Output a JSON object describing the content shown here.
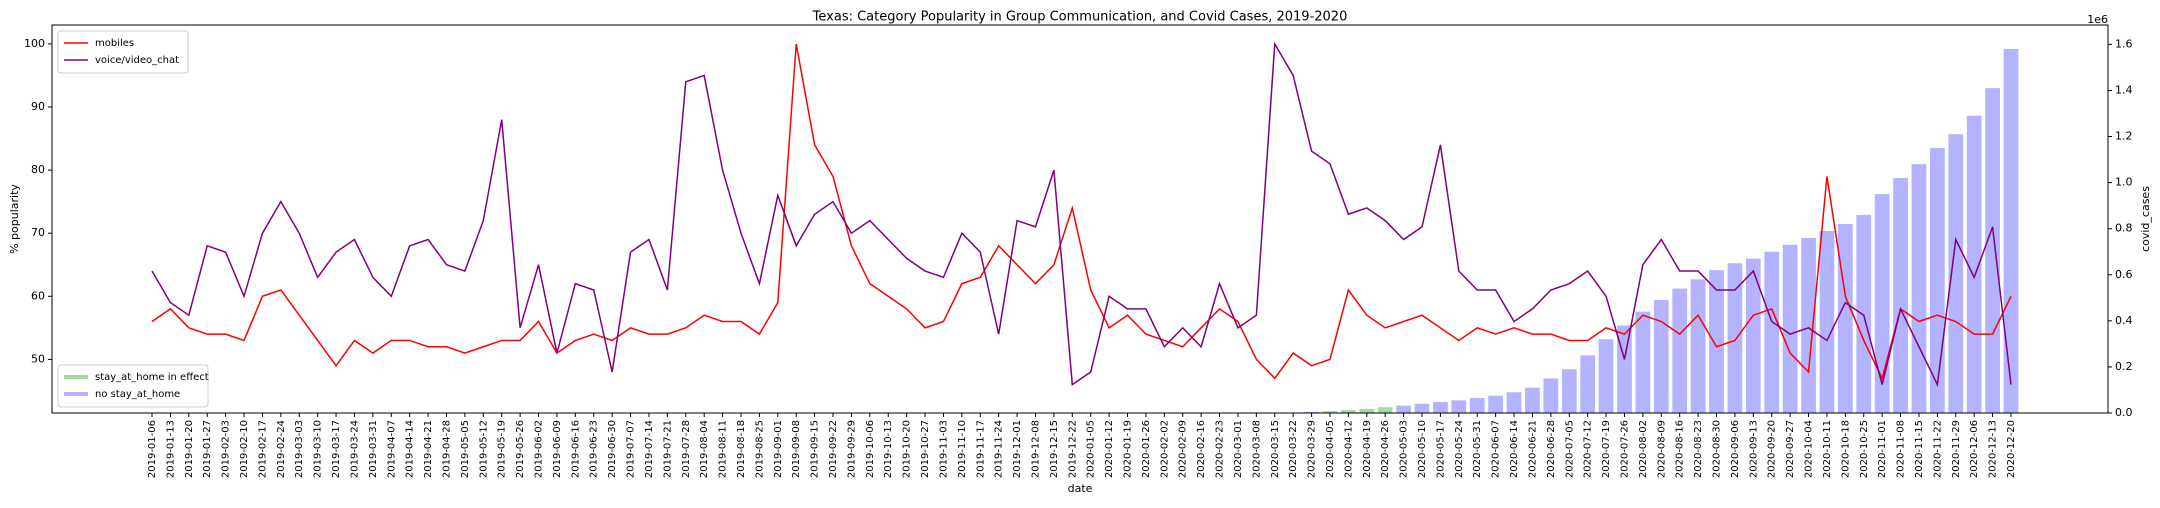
{
  "chart_data": {
    "type": "line",
    "title": "Texas: Category Popularity in Group Communication, and Covid Cases, 2019-2020",
    "x_label": "date",
    "y_label": "% popularity",
    "y2_label": "covid_cases",
    "y2_offset_label": "1e6",
    "legend": "upper left",
    "bar_legend": "lower left",
    "grid": false,
    "categories": [
      "2019-01-06",
      "2019-01-13",
      "2019-01-20",
      "2019-01-27",
      "2019-02-03",
      "2019-02-10",
      "2019-02-17",
      "2019-02-24",
      "2019-03-03",
      "2019-03-10",
      "2019-03-17",
      "2019-03-24",
      "2019-03-31",
      "2019-04-07",
      "2019-04-14",
      "2019-04-21",
      "2019-04-28",
      "2019-05-05",
      "2019-05-12",
      "2019-05-19",
      "2019-05-26",
      "2019-06-02",
      "2019-06-09",
      "2019-06-16",
      "2019-06-23",
      "2019-06-30",
      "2019-07-07",
      "2019-07-14",
      "2019-07-21",
      "2019-07-28",
      "2019-08-04",
      "2019-08-11",
      "2019-08-18",
      "2019-08-25",
      "2019-09-01",
      "2019-09-08",
      "2019-09-15",
      "2019-09-22",
      "2019-09-29",
      "2019-10-06",
      "2019-10-13",
      "2019-10-20",
      "2019-10-27",
      "2019-11-03",
      "2019-11-10",
      "2019-11-17",
      "2019-11-24",
      "2019-12-01",
      "2019-12-08",
      "2019-12-15",
      "2019-12-22",
      "2020-01-05",
      "2020-01-12",
      "2020-01-19",
      "2020-01-26",
      "2020-02-02",
      "2020-02-09",
      "2020-02-16",
      "2020-02-23",
      "2020-03-01",
      "2020-03-08",
      "2020-03-15",
      "2020-03-22",
      "2020-03-29",
      "2020-04-05",
      "2020-04-12",
      "2020-04-19",
      "2020-04-26",
      "2020-05-03",
      "2020-05-10",
      "2020-05-17",
      "2020-05-24",
      "2020-05-31",
      "2020-06-07",
      "2020-06-14",
      "2020-06-21",
      "2020-06-28",
      "2020-07-05",
      "2020-07-12",
      "2020-07-19",
      "2020-07-26",
      "2020-08-02",
      "2020-08-09",
      "2020-08-16",
      "2020-08-23",
      "2020-08-30",
      "2020-09-06",
      "2020-09-13",
      "2020-09-20",
      "2020-09-27",
      "2020-10-04",
      "2020-10-11",
      "2020-10-18",
      "2020-10-25",
      "2020-11-01",
      "2020-11-08",
      "2020-11-15",
      "2020-11-22",
      "2020-11-29",
      "2020-12-06",
      "2020-12-13",
      "2020-12-20"
    ],
    "series": [
      {
        "name": "mobiles",
        "color": "#ff0000",
        "values": [
          56,
          58,
          55,
          54,
          54,
          53,
          60,
          61,
          57,
          53,
          49,
          53,
          51,
          53,
          53,
          52,
          52,
          51,
          52,
          53,
          53,
          56,
          51,
          53,
          54,
          53,
          55,
          54,
          54,
          55,
          57,
          56,
          56,
          54,
          59,
          100,
          84,
          79,
          68,
          62,
          60,
          58,
          55,
          56,
          62,
          63,
          68,
          65,
          62,
          65,
          74,
          61,
          55,
          57,
          54,
          53,
          52,
          55,
          58,
          56,
          50,
          47,
          51,
          49,
          50,
          61,
          57,
          55,
          56,
          57,
          55,
          53,
          55,
          54,
          55,
          54,
          54,
          53,
          53,
          55,
          54,
          57,
          56,
          54,
          57,
          52,
          53,
          57,
          58,
          51,
          48,
          79,
          60,
          53,
          47,
          58,
          56,
          57,
          56,
          54,
          54,
          60
        ]
      },
      {
        "name": "voice/video_chat",
        "color": "#800080",
        "values": [
          64,
          59,
          57,
          68,
          67,
          60,
          70,
          75,
          70,
          63,
          67,
          69,
          63,
          60,
          68,
          69,
          65,
          64,
          72,
          88,
          55,
          65,
          51,
          62,
          61,
          48,
          67,
          69,
          61,
          94,
          95,
          80,
          70,
          62,
          76,
          68,
          73,
          75,
          70,
          72,
          69,
          66,
          64,
          63,
          70,
          67,
          54,
          72,
          71,
          80,
          46,
          48,
          60,
          58,
          58,
          52,
          55,
          52,
          62,
          55,
          57,
          100,
          95,
          83,
          81,
          73,
          74,
          72,
          69,
          71,
          84,
          64,
          61,
          61,
          56,
          58,
          61,
          62,
          64,
          60,
          50,
          65,
          69,
          64,
          64,
          61,
          61,
          64,
          56,
          54,
          55,
          53,
          59,
          57,
          46,
          58,
          52,
          46,
          69,
          63,
          71,
          46
        ]
      }
    ],
    "bar_series": [
      {
        "name": "stay_at_home in effect",
        "color": "#a6d9a6",
        "axis": "y2",
        "values": [
          null,
          null,
          null,
          null,
          null,
          null,
          null,
          null,
          null,
          null,
          null,
          null,
          null,
          null,
          null,
          null,
          null,
          null,
          null,
          null,
          null,
          null,
          null,
          null,
          null,
          null,
          null,
          null,
          null,
          null,
          null,
          null,
          null,
          null,
          null,
          null,
          null,
          null,
          null,
          null,
          null,
          null,
          null,
          null,
          null,
          null,
          null,
          null,
          null,
          null,
          null,
          null,
          null,
          null,
          null,
          null,
          null,
          null,
          null,
          null,
          null,
          null,
          null,
          null,
          8000,
          13000,
          18000,
          25000,
          null,
          null,
          null,
          null,
          null,
          null,
          null,
          null,
          null,
          null,
          null,
          null,
          null,
          null,
          null,
          null,
          null,
          null,
          null,
          null,
          null,
          null,
          null,
          null,
          null,
          null,
          null,
          null,
          null,
          null,
          null,
          null,
          null,
          null
        ]
      },
      {
        "name": "no stay_at_home",
        "color": "#b3b3ff",
        "axis": "y2",
        "values": [
          null,
          null,
          null,
          null,
          null,
          null,
          null,
          null,
          null,
          null,
          null,
          null,
          null,
          null,
          null,
          null,
          null,
          null,
          null,
          null,
          null,
          null,
          null,
          null,
          null,
          null,
          null,
          null,
          null,
          null,
          null,
          null,
          null,
          null,
          null,
          null,
          null,
          null,
          null,
          null,
          null,
          null,
          null,
          null,
          null,
          null,
          null,
          null,
          null,
          null,
          null,
          null,
          null,
          null,
          null,
          null,
          null,
          null,
          null,
          null,
          null,
          1000,
          2000,
          5000,
          null,
          null,
          null,
          null,
          32000,
          40000,
          48000,
          55000,
          65000,
          75000,
          90000,
          110000,
          150000,
          190000,
          250000,
          320000,
          380000,
          440000,
          490000,
          540000,
          580000,
          620000,
          650000,
          670000,
          700000,
          730000,
          760000,
          790000,
          820000,
          860000,
          950000,
          1020000,
          1080000,
          1150000,
          1210000,
          1290000,
          1410000,
          1580000
        ]
      }
    ],
    "ylim": [
      41.5,
      103
    ],
    "yticks": [
      50,
      60,
      70,
      80,
      90,
      100
    ],
    "y2lim": [
      0,
      1684000
    ],
    "y2ticks": [
      {
        "value": 0,
        "label": "0.0"
      },
      {
        "value": 200000,
        "label": "0.2"
      },
      {
        "value": 400000,
        "label": "0.4"
      },
      {
        "value": 600000,
        "label": "0.6"
      },
      {
        "value": 800000,
        "label": "0.8"
      },
      {
        "value": 1000000,
        "label": "1.0"
      },
      {
        "value": 1200000,
        "label": "1.2"
      },
      {
        "value": 1400000,
        "label": "1.4"
      },
      {
        "value": 1600000,
        "label": "1.6"
      }
    ]
  }
}
